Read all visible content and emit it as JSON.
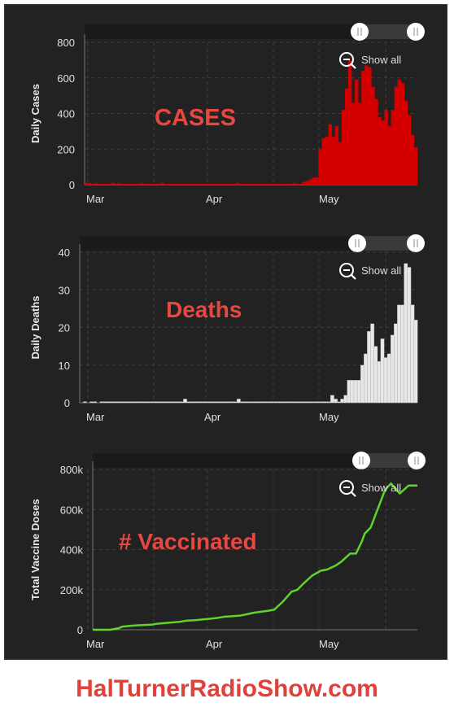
{
  "charts": [
    {
      "id": "cases",
      "overlay_label": "CASES",
      "show_all_label": "Show all"
    },
    {
      "id": "deaths",
      "overlay_label": "Deaths",
      "show_all_label": "Show all"
    },
    {
      "id": "vax",
      "overlay_label": "# Vaccinated",
      "show_all_label": "Show all"
    }
  ],
  "footer": {
    "text": "HalTurnerRadioShow.com"
  },
  "colors": {
    "background": "#222222",
    "cases_bar": "#d40000",
    "deaths_bar": "#e8e8e8",
    "vaccine_line": "#5fd42a",
    "overlay_text": "#e84842",
    "footer_text": "#e0413b"
  },
  "chart_data": [
    {
      "type": "bar",
      "ylabel": "Daily Cases",
      "ylim": [
        0,
        800
      ],
      "yticks": [
        "0",
        "200",
        "400",
        "600",
        "800"
      ],
      "xtick_labels": [
        "Mar",
        "Apr",
        "May"
      ],
      "grid": true,
      "series": [
        {
          "values": [
            10,
            10,
            5,
            8,
            5,
            5,
            5,
            5,
            10,
            5,
            8,
            5,
            5,
            5,
            5,
            5,
            5,
            8,
            5,
            5,
            5,
            5,
            5,
            10,
            5,
            5,
            5,
            5,
            5,
            5,
            5,
            5,
            5,
            5,
            5,
            5,
            5,
            5,
            5,
            5,
            5,
            5,
            5,
            5,
            5,
            5,
            10,
            5,
            5,
            5,
            5,
            5,
            5,
            5,
            5,
            5,
            5,
            5,
            5,
            5,
            5,
            5,
            5,
            8,
            5,
            5,
            15,
            20,
            30,
            40,
            40,
            200,
            260,
            270,
            340,
            270,
            330,
            240,
            420,
            540,
            700,
            460,
            590,
            460,
            640,
            670,
            660,
            550,
            480,
            380,
            360,
            420,
            330,
            420,
            550,
            590,
            570,
            470,
            390,
            280,
            210
          ]
        }
      ]
    },
    {
      "type": "bar",
      "ylabel": "Daily Deaths",
      "ylim": [
        0,
        40
      ],
      "yticks": [
        "0",
        "10",
        "20",
        "30",
        "40"
      ],
      "xtick_labels": [
        "Mar",
        "Apr",
        "May"
      ],
      "grid": true,
      "series": [
        {
          "values": [
            0,
            0.3,
            0,
            0.3,
            0.3,
            0,
            0.3,
            0.3,
            0.3,
            0.3,
            0.3,
            0.3,
            0.3,
            0.3,
            0.3,
            0.3,
            0.3,
            0.3,
            0.3,
            0.3,
            0.3,
            0.3,
            0.3,
            0.3,
            0.3,
            0.3,
            0.3,
            0.3,
            0.3,
            0.3,
            0.3,
            1,
            0.3,
            0.3,
            0.3,
            0.3,
            0.3,
            0.3,
            0.3,
            0.3,
            0.3,
            0.3,
            0.3,
            0.3,
            0.3,
            0.3,
            0.3,
            1,
            0.3,
            0.3,
            0.3,
            0.3,
            0.3,
            0.3,
            0.3,
            0.3,
            0.3,
            0.3,
            0.3,
            0.3,
            0.3,
            0.3,
            0.3,
            0.3,
            0.3,
            0.3,
            0.3,
            0.3,
            0.3,
            0.3,
            0.3,
            0.3,
            0.3,
            0.3,
            0.3,
            2,
            1,
            0.3,
            1,
            2,
            6,
            6,
            6,
            6,
            10,
            13,
            19,
            21,
            15,
            11,
            17,
            12,
            13,
            18,
            21,
            26,
            26,
            37,
            36,
            26,
            22
          ]
        }
      ]
    },
    {
      "type": "line",
      "ylabel": "Total Vaccine Doses",
      "ylim": [
        0,
        800000
      ],
      "yticks": [
        "0",
        "200k",
        "400k",
        "600k",
        "800k"
      ],
      "xtick_labels": [
        "Mar",
        "Apr",
        "May"
      ],
      "grid": true,
      "series": [
        {
          "x": [
            0,
            6,
            9,
            10,
            13,
            15,
            20,
            22,
            26,
            30,
            32,
            35,
            40,
            43,
            45,
            50,
            52,
            55,
            60,
            62,
            65,
            68,
            70,
            72,
            75,
            78,
            80,
            83,
            85,
            88,
            90,
            92,
            93,
            95,
            100,
            102,
            105,
            108,
            110,
            111
          ],
          "values": [
            0,
            0,
            8000,
            15000,
            20000,
            22000,
            25000,
            30000,
            35000,
            40000,
            45000,
            48000,
            55000,
            60000,
            65000,
            70000,
            75000,
            85000,
            95000,
            100000,
            140000,
            190000,
            200000,
            230000,
            270000,
            295000,
            300000,
            320000,
            340000,
            380000,
            380000,
            440000,
            480000,
            510000,
            700000,
            730000,
            680000,
            720000,
            720000,
            720000
          ]
        }
      ]
    }
  ]
}
